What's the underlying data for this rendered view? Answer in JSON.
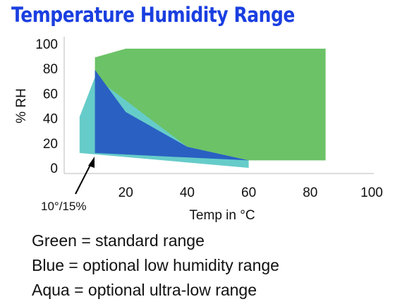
{
  "chart_data": {
    "type": "area",
    "title": "Temperature Humidity Range",
    "xlabel": "Temp in °C",
    "ylabel": "% RH",
    "xlim": [
      0,
      100
    ],
    "ylim": [
      0,
      100
    ],
    "x_ticks": [
      "20",
      "40",
      "60",
      "80",
      "100"
    ],
    "y_ticks": [
      "0",
      "20",
      "40",
      "60",
      "80",
      "100"
    ],
    "annotation": {
      "text": "10°/15%",
      "x": 10,
      "y": 15
    },
    "series": [
      {
        "name": "Green = standard range",
        "color": "#6cc267",
        "points": [
          [
            10,
            89
          ],
          [
            20,
            96
          ],
          [
            85,
            96
          ],
          [
            85,
            6
          ],
          [
            60,
            6
          ],
          [
            10,
            15
          ]
        ]
      },
      {
        "name": "Aqua = optional ultra-low range",
        "color": "#66ccc9",
        "points": [
          [
            5,
            41
          ],
          [
            10,
            73
          ],
          [
            40,
            17
          ],
          [
            60,
            6
          ],
          [
            60,
            0
          ],
          [
            5,
            12
          ]
        ]
      },
      {
        "name": "Blue = optional low humidity range",
        "color": "#2a60c2",
        "points": [
          [
            10,
            79
          ],
          [
            20,
            45
          ],
          [
            40,
            17
          ],
          [
            60,
            6
          ],
          [
            10,
            12
          ]
        ]
      }
    ],
    "legend": [
      "Green = standard range",
      "Blue = optional low humidity range",
      "Aqua = optional ultra-low range"
    ]
  }
}
